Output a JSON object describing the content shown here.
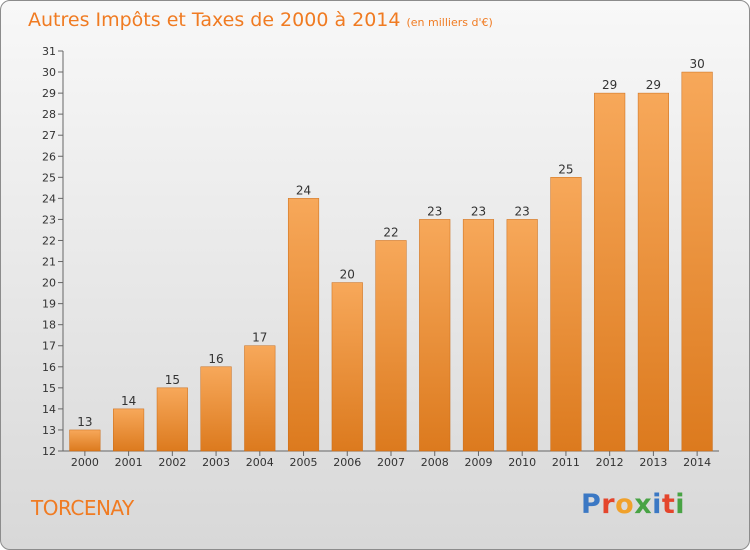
{
  "header": {
    "title": "Autres Impôts et Taxes de 2000 à 2014",
    "unit": "(en milliers d'€)"
  },
  "footer": {
    "commune": "TORCENAY",
    "logo_text": "Proxiti"
  },
  "colors": {
    "accent": "#f07b22",
    "bar_light": "#f7a85a",
    "bar_dark": "#dc7a1e",
    "logo_letters": [
      "#3b78c4",
      "#e4452c",
      "#f0a12b",
      "#48a344",
      "#3b78c4",
      "#e4452c",
      "#48a344"
    ]
  },
  "chart_data": {
    "type": "bar",
    "title": "Autres Impôts et Taxes de 2000 à 2014",
    "subtitle": "(en milliers d'€)",
    "xlabel": "",
    "ylabel": "",
    "categories": [
      "2000",
      "2001",
      "2002",
      "2003",
      "2004",
      "2005",
      "2006",
      "2007",
      "2008",
      "2009",
      "2010",
      "2011",
      "2012",
      "2013",
      "2014"
    ],
    "values": [
      13,
      14,
      15,
      16,
      17,
      24,
      20,
      22,
      23,
      23,
      23,
      25,
      29,
      29,
      30
    ],
    "ylim": [
      12,
      31
    ],
    "yticks": [
      12,
      13,
      14,
      15,
      16,
      17,
      18,
      19,
      20,
      21,
      22,
      23,
      24,
      25,
      26,
      27,
      28,
      29,
      30,
      31
    ],
    "grid": false,
    "legend": "none",
    "data_labels": true
  }
}
